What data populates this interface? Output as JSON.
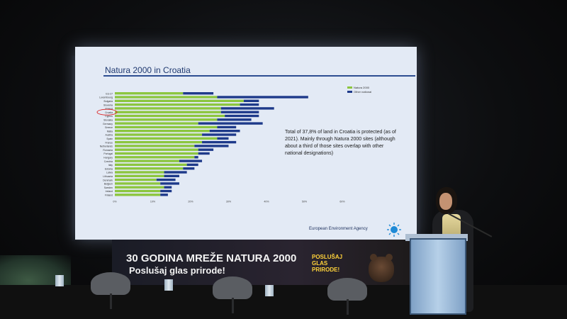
{
  "slide": {
    "title": "Natura 2000 in Croatia",
    "note": "Total of 37,8% of land in Croatia is protected (as of 2021). Mainly through Natura 2000 sites (although about a third of those sites overlap with other national designations)",
    "agency": "European Environment Agency",
    "legend": [
      "Natura 2000",
      "Other national"
    ]
  },
  "chart_data": {
    "type": "bar",
    "orientation": "horizontal",
    "stacked": true,
    "categories": [
      "EU-27",
      "Luxembourg",
      "Bulgaria",
      "Slovenia",
      "Poland",
      "Croatia",
      "Cyprus",
      "Slovakia",
      "Germany",
      "Greece",
      "Malta",
      "Austria",
      "Spain",
      "France",
      "Netherlands",
      "Romania",
      "Portugal",
      "Hungary",
      "Czechia",
      "Italy",
      "Estonia",
      "Latvia",
      "Lithuania",
      "Denmark",
      "Belgium",
      "Sweden",
      "Ireland",
      "Finland"
    ],
    "series": [
      {
        "name": "Natura 2000",
        "values": [
          18,
          27,
          34,
          33,
          28,
          28,
          29,
          27,
          22,
          27,
          25,
          23,
          27,
          23,
          21,
          22,
          22,
          21,
          17,
          19,
          18,
          13,
          13,
          11,
          12,
          13,
          12,
          12
        ]
      },
      {
        "name": "Other national",
        "values": [
          8,
          24,
          4,
          5,
          14,
          10,
          9,
          9,
          17,
          5,
          8,
          9,
          3,
          9,
          9,
          4,
          3,
          1,
          6,
          3,
          3,
          6,
          4,
          5,
          5,
          2,
          3,
          2
        ]
      }
    ],
    "xticks": [
      "0%",
      "10%",
      "20%",
      "30%",
      "40%",
      "50%",
      "60%"
    ],
    "xlim": [
      0,
      60
    ],
    "highlight": "Croatia",
    "colors": {
      "Natura 2000": "#8cc63f",
      "Other national": "#1e3a8a"
    }
  },
  "banner": {
    "line1": "30 GODINA MREŽE NATURA 2000",
    "line2": "Poslušaj glas prirode!",
    "sticker": "POSLUŠAJ GLAS PRIRODE!"
  }
}
